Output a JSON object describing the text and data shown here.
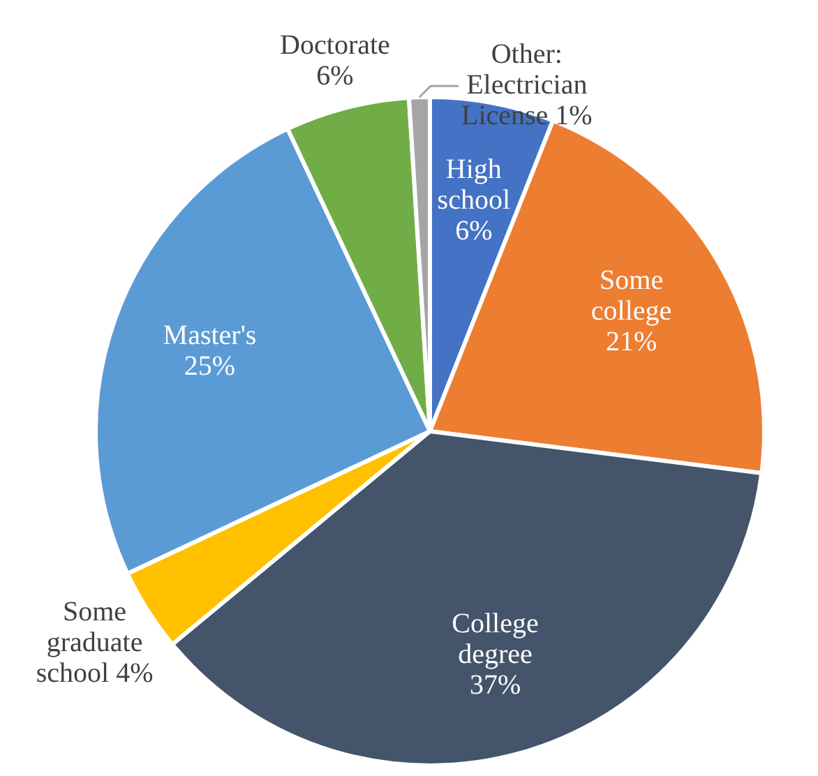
{
  "chart_data": {
    "type": "pie",
    "categories": [
      "High school",
      "Some college",
      "College degree",
      "Some graduate school",
      "Master's",
      "Doctorate",
      "Other: Electrician License"
    ],
    "values": [
      6,
      21,
      37,
      4,
      25,
      6,
      1
    ],
    "colors": [
      "#4472c4",
      "#ed7d31",
      "#44546a",
      "#ffc000",
      "#5b9bd5",
      "#70ad47",
      "#a5a5a5"
    ],
    "value_labels": [
      "6%",
      "21%",
      "37%",
      "4%",
      "25%",
      "6%",
      "1%"
    ],
    "legend": false
  }
}
